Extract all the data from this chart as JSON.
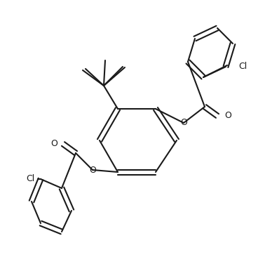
{
  "background_color": "#ffffff",
  "bond_color": "#1a1a1a",
  "figsize": [
    3.68,
    3.66
  ],
  "dpi": 100,
  "lw": 1.5,
  "lw2": 2.2,
  "atoms": {
    "Cl1_label": "Cl",
    "Cl2_label": "Cl",
    "O_label": "O",
    "tBu_label": ""
  }
}
